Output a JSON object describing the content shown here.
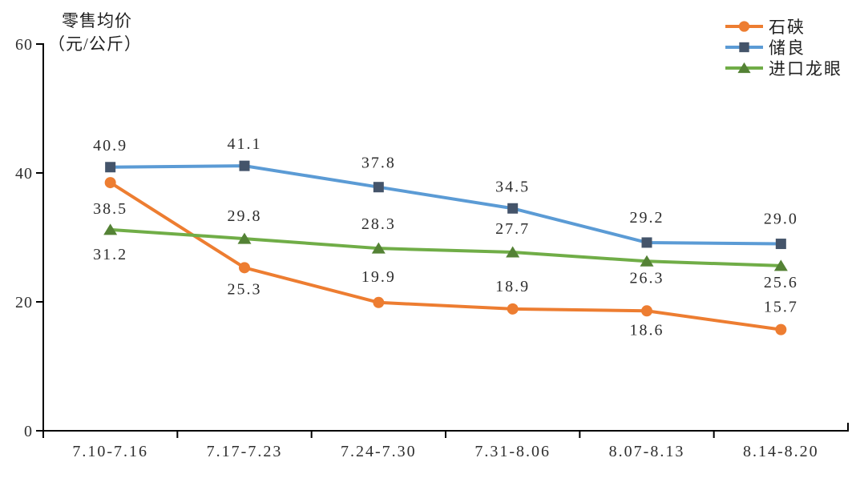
{
  "page": {
    "background": "#ffffff"
  },
  "chart_data": {
    "type": "line",
    "title": "",
    "y_axis_title": [
      "零售均价",
      "（元/公斤）"
    ],
    "categories": [
      "7.10-7.16",
      "7.17-7.23",
      "7.24-7.30",
      "7.31-8.06",
      "8.07-8.13",
      "8.14-8.20"
    ],
    "y_ticks": [
      "0",
      "20",
      "40",
      "60"
    ],
    "ylim": [
      0,
      60
    ],
    "grid": false,
    "legend_position": "top-right",
    "axis_color": "#000000",
    "label_color": "#2e2e2e",
    "series": [
      {
        "name": "石硖",
        "line_color": "#ED7D31",
        "marker": "circle",
        "marker_color": "#ED7D31",
        "values": [
          38.5,
          25.3,
          19.9,
          18.9,
          18.6,
          15.7
        ],
        "point_labels": [
          "38.5",
          "25.3",
          "19.9",
          "18.9",
          "18.6",
          "15.7"
        ],
        "label_dy": [
          32,
          26,
          -33,
          -29,
          23,
          -29
        ]
      },
      {
        "name": "储良",
        "line_color": "#5B9BD5",
        "marker": "square",
        "marker_color": "#44546A",
        "values": [
          40.9,
          41.1,
          37.8,
          34.5,
          29.2,
          29.0
        ],
        "point_labels": [
          "40.9",
          "41.1",
          "37.8",
          "34.5",
          "29.2",
          "29.0"
        ],
        "label_dy": [
          -28,
          -28,
          -31,
          -28,
          -32,
          -32
        ]
      },
      {
        "name": "进口龙眼",
        "line_color": "#70AD47",
        "marker": "triangle",
        "marker_color": "#548235",
        "values": [
          31.2,
          29.8,
          28.3,
          27.7,
          26.3,
          25.6
        ],
        "point_labels": [
          "31.2",
          "29.8",
          "28.3",
          "27.7",
          "26.3",
          "25.6"
        ],
        "label_dy": [
          30,
          -29,
          -31,
          -30,
          20,
          20
        ]
      }
    ]
  }
}
